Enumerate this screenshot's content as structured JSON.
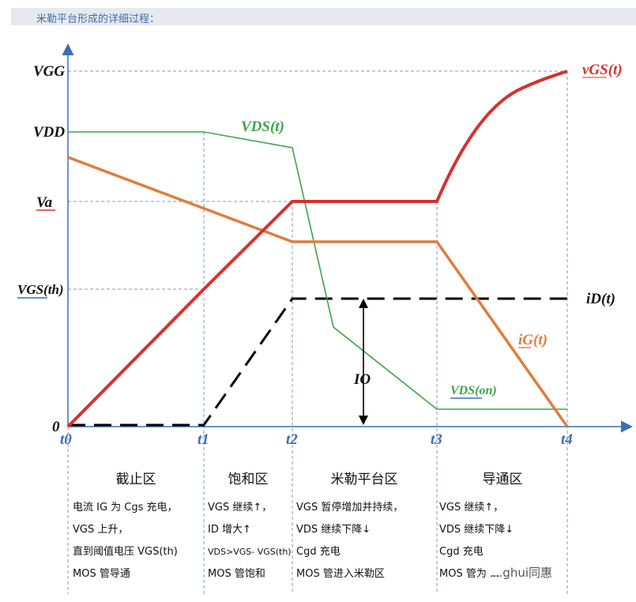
{
  "header": {
    "title": "米勒平台形成的详细过程："
  },
  "chart_data": {
    "type": "line",
    "y_levels": [
      "V_GG",
      "V_DD",
      "V_a",
      "V_GS(th)",
      "0"
    ],
    "y_labels": {
      "vgg": "VGG",
      "vdd": "VDD",
      "va": "Va",
      "vgsth": "VGS(th)",
      "zero": "0"
    },
    "x_ticks": [
      "t0",
      "t1",
      "t2",
      "t3",
      "t4"
    ],
    "x": [
      "t0",
      "t1",
      "t2",
      "t3",
      "t4"
    ],
    "series": [
      {
        "name": "vGS(t)",
        "color": "#d9302c",
        "values": [
          "0",
          "V_GS(th)",
          "V_a",
          "V_a",
          "V_GG"
        ]
      },
      {
        "name": "VDS(t)",
        "color": "#3aa64a",
        "values": [
          "V_DD",
          "V_DD",
          "≈ V_DD (slightly lower)",
          "V_DS(on)",
          "V_DS(on)"
        ]
      },
      {
        "name": "iG(t)",
        "color": "#e07d3c",
        "values": [
          "high",
          "decreasing",
          "plateau",
          "plateau",
          "0"
        ]
      },
      {
        "name": "iD(t)",
        "color": "#000000",
        "values": [
          "0",
          "0",
          "I_O",
          "I_O",
          "I_O"
        ]
      }
    ],
    "annotations": {
      "io": "IO",
      "vds_on": "VDS(on)"
    },
    "curve_labels": {
      "vgs": "vGS(t)",
      "vds": "VDS(t)",
      "ig": "iG(t)",
      "id": "iD(t)"
    }
  },
  "regions": [
    {
      "title": "截止区",
      "lines": [
        "电流 IG 为 Cgs 充电，",
        "VGS 上升，",
        "直到阈值电压 VGS(th)",
        "MOS 管导通"
      ]
    },
    {
      "title": "饱和区",
      "lines": [
        "VGS 继续↑，",
        "ID 增大↑",
        "VDS>VGS- VGS(th)",
        "MOS 管饱和"
      ]
    },
    {
      "title": "米勒平台区",
      "lines": [
        "VGS 暂停增加并持续，",
        "VDS 继续下降↓",
        "Cgd 充电",
        "MOS 管进入米勒区"
      ]
    },
    {
      "title": "导通区",
      "lines": [
        "VGS 继续↑，",
        "VDS 继续下降↓",
        "Cgd 充电",
        "MOS 管为 ..."
      ]
    }
  ],
  "watermark": "...ghui同惠",
  "colors": {
    "axis": "#3d6db5",
    "vgs": "#d9302c",
    "vds": "#3aa64a",
    "ig": "#e07d3c",
    "id": "#000000"
  }
}
